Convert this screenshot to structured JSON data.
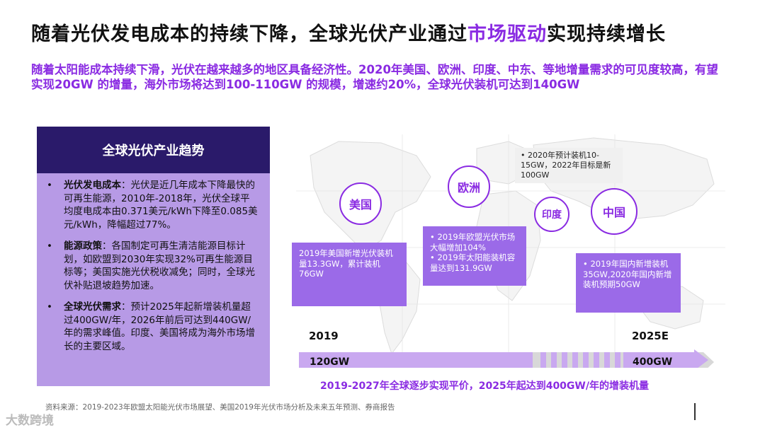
{
  "title": {
    "part1": "随着光伏发电成本的持续下降，全球光伏产业通过",
    "highlight": "市场驱动",
    "part2": "实现持续增长"
  },
  "subtitle": "随着太阳能成本持续下滑，光伏在越来越多的地区具备经济性。2020年美国、欧洲、印度、中东、等地增量需求的可见度较高，有望实现20GW 的增量，海外市场将达到100-110GW 的规模，增速约20%，全球光伏装机可达到140GW",
  "panel": {
    "heading": "全球光伏产业趋势",
    "bullets": [
      {
        "dot": "•",
        "label": "光伏发电成本",
        "text": "：光伏是近几年成本下降最快的可再生能源，2010年-2018年，光伏全球平均度电成本由0.371美元/kWh下降至0.085美元/kWh，降幅超过77%。"
      },
      {
        "dot": "•",
        "label": "能源政策",
        "text": "：各国制定可再生清洁能源目标计划，如欧盟到2030年实现32%可再生能源目标等；美国实施光伏税收减免；同时，全球光伏补贴退坡趋势加速。"
      },
      {
        "dot": "•",
        "label": "全球光伏需求",
        "text": "：预计2025年起新增装机量超过400GW/年，2026年前后可达到440GW/年的需求峰值。印度、美国将成为海外市场增长的主要区域。"
      }
    ]
  },
  "regions": {
    "usa": {
      "label": "美国",
      "callout": "2019年美国新增光伏装机量13.3GW，累计装机76GW"
    },
    "europe": {
      "label": "欧洲",
      "callout": "• 2019年欧盟光伏市场大幅增加104%\n• 2019年太阳能装机容量达到131.9GW"
    },
    "india": {
      "label": "印度",
      "note": "• 2020年预计装机10-15GW，2022年目标是新100GW"
    },
    "china": {
      "label": "中国",
      "callout": "• 2019年国内新增装机35GW,2020年国内新增装机预期50GW"
    }
  },
  "timeline": {
    "start_year": "2019",
    "start_value": "120GW",
    "end_year": "2025E",
    "end_value": "400GW",
    "caption": "2019-2027年全球逐步实现平价，2025年起达到400GW/年的增装机量"
  },
  "source": "资料来源：2019-2023年欧盟太阳能光伏市场展望、美国2019年光伏市场分析及未来五年预测、券商报告",
  "watermark": "大数跨境",
  "colors": {
    "accent": "#8a2be2",
    "panel_head": "#2a1a6a",
    "panel_bg": "#b79ae6",
    "callout_bg": "#9b6ae8"
  }
}
